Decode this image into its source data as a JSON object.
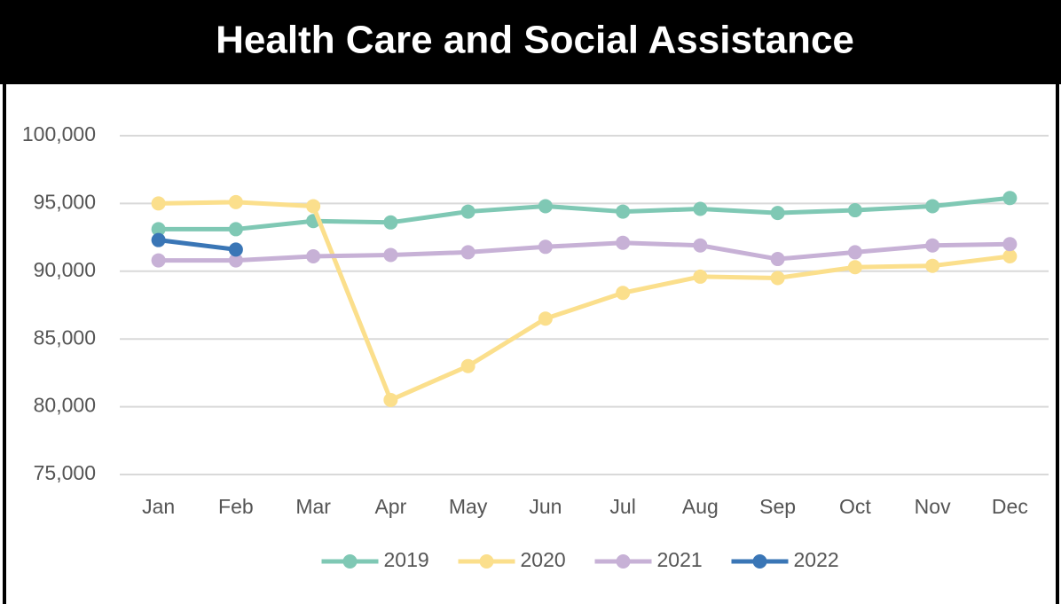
{
  "chart_data": {
    "type": "line",
    "title": "Health Care and Social Assistance",
    "categories": [
      "Jan",
      "Feb",
      "Mar",
      "Apr",
      "May",
      "Jun",
      "Jul",
      "Aug",
      "Sep",
      "Oct",
      "Nov",
      "Dec"
    ],
    "series": [
      {
        "name": "2019",
        "color": "#7fc8b4",
        "values": [
          93100,
          93100,
          93700,
          93600,
          94400,
          94800,
          94400,
          94600,
          94300,
          94500,
          94800,
          95400
        ]
      },
      {
        "name": "2020",
        "color": "#fbdf8c",
        "values": [
          95000,
          95100,
          94800,
          80500,
          83000,
          86500,
          88400,
          89600,
          89500,
          90300,
          90400,
          91100
        ]
      },
      {
        "name": "2021",
        "color": "#c7b1d6",
        "values": [
          90800,
          90800,
          91100,
          91200,
          91400,
          91800,
          92100,
          91900,
          90900,
          91400,
          91900,
          92000
        ]
      },
      {
        "name": "2022",
        "color": "#3a76b6",
        "values": [
          92300,
          91600,
          null,
          null,
          null,
          null,
          null,
          null,
          null,
          null,
          null,
          null
        ]
      }
    ],
    "ylim": [
      75000,
      100000
    ],
    "yticks": [
      {
        "value": 75000,
        "label": "75,000"
      },
      {
        "value": 80000,
        "label": "80,000"
      },
      {
        "value": 85000,
        "label": "85,000"
      },
      {
        "value": 90000,
        "label": "90,000"
      },
      {
        "value": 95000,
        "label": "95,000"
      },
      {
        "value": 100000,
        "label": "100,000"
      }
    ],
    "grid": true,
    "legend": "bottom"
  }
}
